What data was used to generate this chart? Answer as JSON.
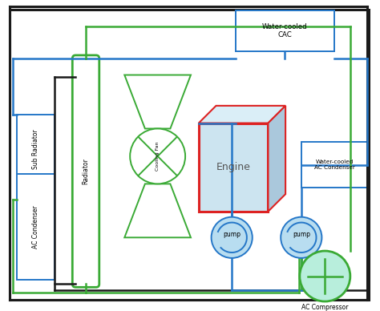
{
  "bg_color": "#f0f0f0",
  "outer_border_color": "#1a1a1a",
  "blue_color": "#2577c8",
  "green_color": "#3aaa35",
  "red_color": "#dd2222",
  "engine_fill": "#cce4f0",
  "engine_top_fill": "#daeef7",
  "engine_right_fill": "#aac8dc",
  "pump_fill": "#b8ddf0",
  "compressor_fill": "#b8eedc",
  "sub_radiator_label": "Sub Radiator",
  "ac_condenser_label": "AC Condenser",
  "radiator_label": "Radiator",
  "cooling_fan_label": "Cooling Fan",
  "engine_label": "Engine",
  "water_cooled_cac_label": "Water-cooled\nCAC",
  "water_cooled_ac_label": "Water-cooled\nAC Condenser",
  "pump1_label": "pump",
  "pump2_label": "pump",
  "ac_compressor_label": "AC Compressor"
}
